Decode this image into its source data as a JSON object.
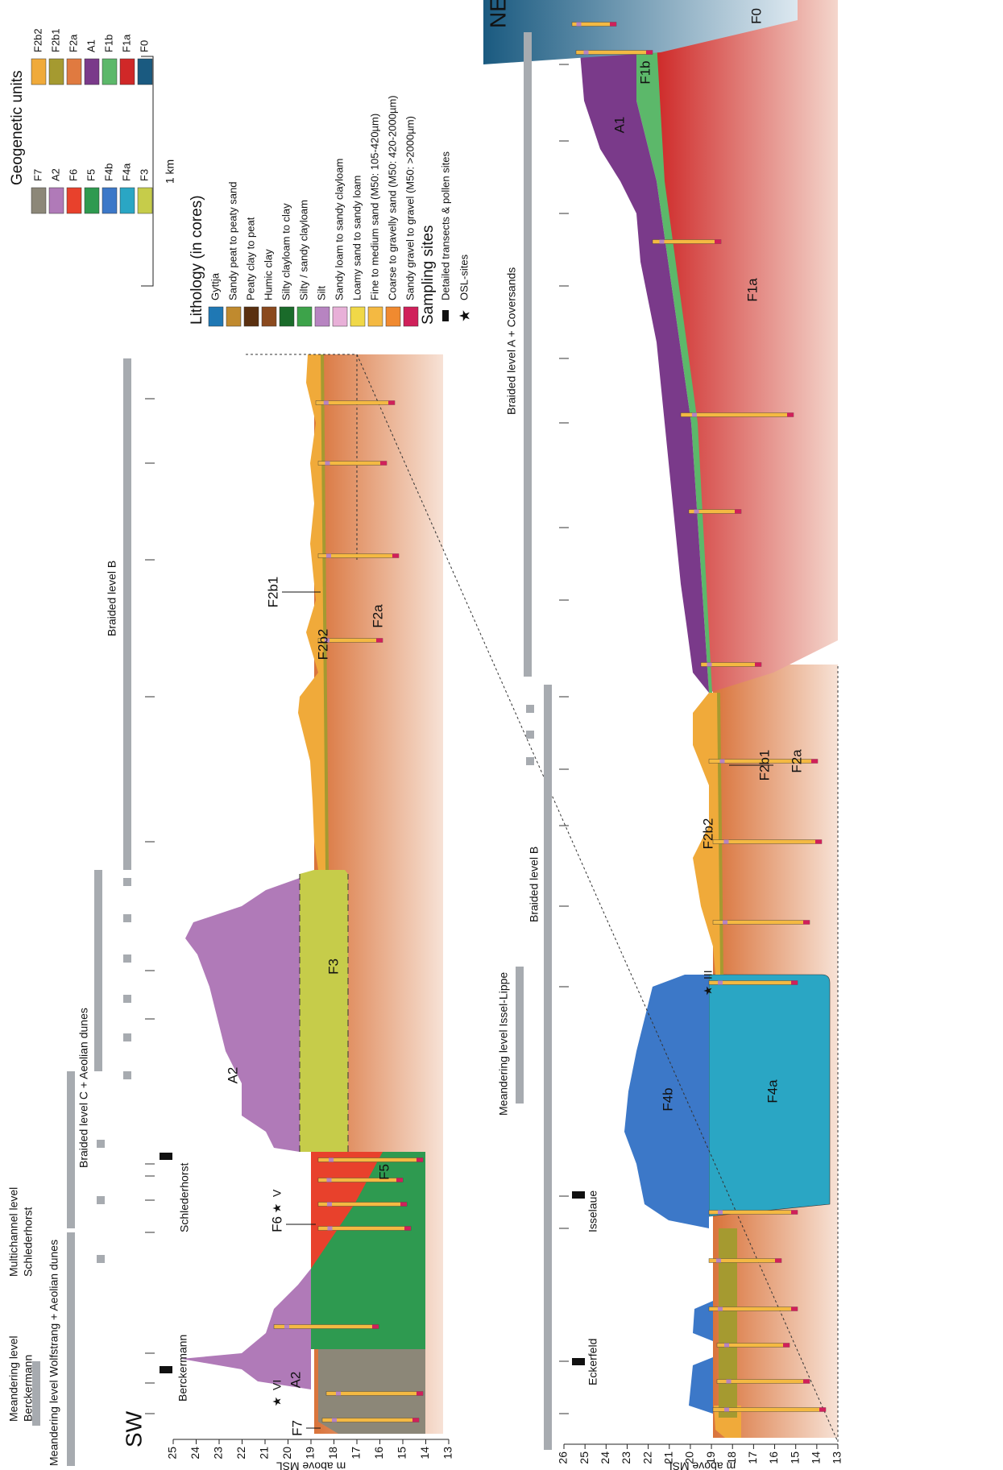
{
  "legend": {
    "scale": "1 km",
    "lithology": {
      "title": "Lithology (in cores)",
      "items": [
        {
          "label": "Gyttja",
          "color": "#1f78b4"
        },
        {
          "label": "Sandy peat to peaty sand",
          "color": "#c08a2e"
        },
        {
          "label": "Peaty clay to peat",
          "color": "#5a3010"
        },
        {
          "label": "Humic clay",
          "color": "#8b4a1e"
        },
        {
          "label": "Silty clayloam to clay",
          "color": "#1a6b2a"
        },
        {
          "label": "Silty / sandy clayloam",
          "color": "#3da34a"
        },
        {
          "label": "Silt",
          "color": "#b784c1"
        },
        {
          "label": "Sandy loam to sandy clayloam",
          "color": "#e8b0d8"
        },
        {
          "label": "Loamy sand to sandy loam",
          "color": "#f0d848"
        },
        {
          "label": "Fine to medium sand (M50: 105-420µm)",
          "color": "#f4b942"
        },
        {
          "label": "Coarse to gravelly sand (M50: 420-2000µm)",
          "color": "#f08a30"
        },
        {
          "label": "Sandy gravel to gravel (M50: >2000µm)",
          "color": "#d0205a"
        }
      ]
    },
    "sampling": {
      "title": "Sampling sites",
      "items": [
        "Detailed transects & pollen sites",
        "OSL-sites"
      ]
    },
    "units": {
      "title": "Geogenetic units",
      "items": [
        {
          "label": "F7",
          "color": "#8c8778"
        },
        {
          "label": "A2",
          "color": "#b07ab8"
        },
        {
          "label": "F6",
          "color": "#e8412c"
        },
        {
          "label": "F5",
          "color": "#2e9a50"
        },
        {
          "label": "F4b",
          "color": "#3c78c8"
        },
        {
          "label": "F4a",
          "color": "#2aa6c4"
        },
        {
          "label": "F3",
          "color": "#c6cc4a"
        },
        {
          "label": "F2b2",
          "color": "#f0aa3a"
        },
        {
          "label": "F2b1",
          "color": "#a59a30"
        },
        {
          "label": "F2a",
          "color": "#e07a40"
        },
        {
          "label": "A1",
          "color": "#7a3a8a"
        },
        {
          "label": "F1b",
          "color": "#5cb86a"
        },
        {
          "label": "F1a",
          "color": "#d02828"
        },
        {
          "label": "F0",
          "color": "#1a5a80"
        }
      ]
    }
  },
  "upper": {
    "direction": "SW",
    "axis_title": "m above MSL",
    "yticks": [
      25,
      24,
      23,
      22,
      21,
      20,
      19,
      18,
      17,
      16,
      15,
      14,
      13
    ],
    "levels": [
      {
        "lines": [
          "Meandering level",
          "Berckermann"
        ]
      },
      {
        "lines": [
          "Meandering level Wolfstrang + Aeolian dunes"
        ]
      },
      {
        "lines": [
          "Multichannel level",
          "Schlederhorst"
        ]
      },
      {
        "lines": [
          "Braided level C + Aeolian dunes"
        ]
      },
      {
        "lines": [
          "Braided level B"
        ]
      }
    ],
    "sites": [
      "Berckermann",
      "Schlederhorst"
    ],
    "units": [
      "F7",
      "A2",
      "F5",
      "F6",
      "A2",
      "F3",
      "F2b2",
      "F2b1",
      "F2a"
    ],
    "osl": [
      "VI",
      "V"
    ]
  },
  "lower": {
    "direction": "NE",
    "axis_title": "m above MSL",
    "yticks": [
      26,
      25,
      24,
      23,
      22,
      21,
      20,
      19,
      18,
      17,
      16,
      15,
      14,
      13
    ],
    "levels": [
      {
        "lines": [
          "Meandering level Issel-Lippe"
        ]
      },
      {
        "lines": [
          "Braided level B"
        ]
      },
      {
        "lines": [
          "Braided level A + Coversands"
        ]
      }
    ],
    "sites": [
      "Eckerfeld",
      "Isselaue"
    ],
    "units": [
      "F4b",
      "F4a",
      "F2b2",
      "F2b1",
      "F2a",
      "A1",
      "F1b",
      "F1a",
      "F0"
    ],
    "osl": [
      "III"
    ]
  }
}
